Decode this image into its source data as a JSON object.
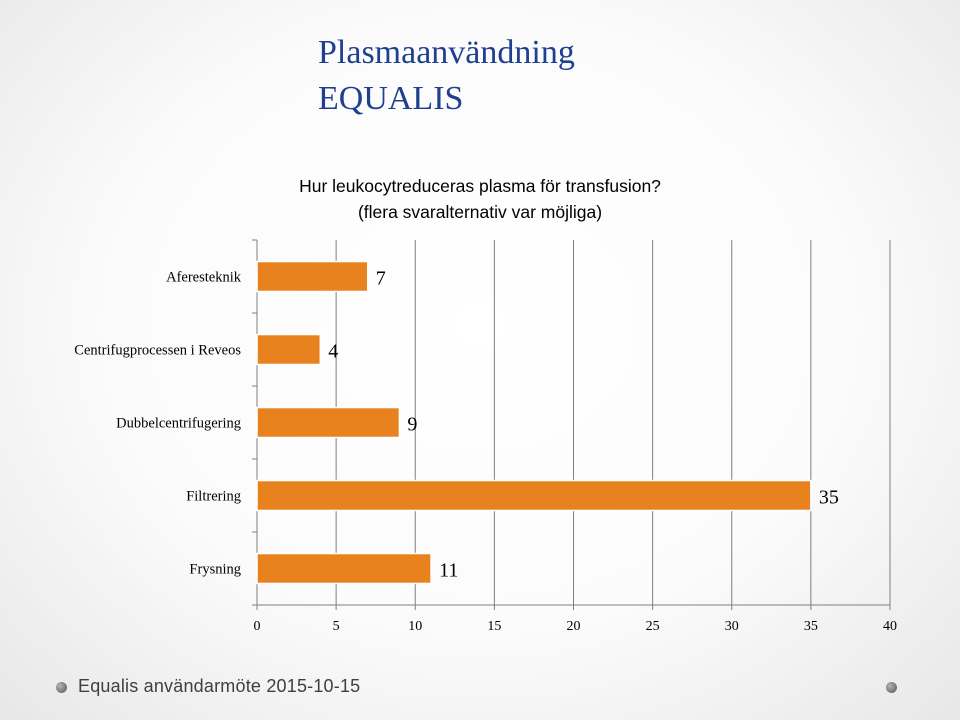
{
  "slide": {
    "title_line1": "Plasmaanvändning",
    "title_line2": "EQUALIS",
    "footer_text": "Equalis användarmöte 2015-10-15",
    "colors": {
      "title": "#1f3f8f",
      "bar_fill": "#e8821e",
      "bar_stroke": "#ffffff",
      "grid": "#7f7f7f"
    }
  },
  "chart_data": {
    "type": "bar",
    "orientation": "horizontal",
    "title_line1": "Hur leukocytreduceras plasma för transfusion?",
    "title_line2": "(flera svaralternativ var möjliga)",
    "categories": [
      "Aferesteknik",
      "Centrifugprocessen i Reveos",
      "Dubbelcentrifugering",
      "Filtrering",
      "Frysning"
    ],
    "values": [
      7,
      4,
      9,
      35,
      11
    ],
    "data_labels": [
      "7",
      "4",
      "9",
      "35",
      "11"
    ],
    "xlim": [
      0,
      40
    ],
    "x_ticks": [
      0,
      5,
      10,
      15,
      20,
      25,
      30,
      35,
      40
    ],
    "grid": true,
    "legend": false
  }
}
